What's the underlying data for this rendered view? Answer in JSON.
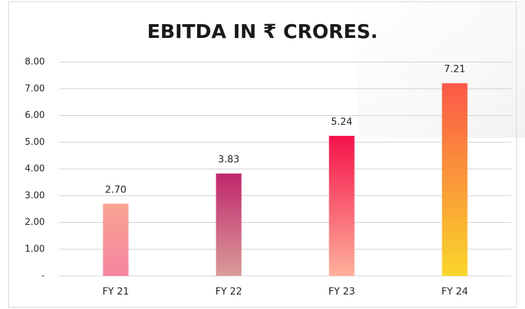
{
  "chart_data": {
    "type": "bar",
    "title": "EBITDA IN ₹ CRORES.",
    "categories": [
      "FY 21",
      "FY 22",
      "FY 23",
      "FY 24"
    ],
    "values": [
      2.7,
      3.83,
      5.24,
      7.21
    ],
    "value_labels": [
      "2.70",
      "3.83",
      "5.24",
      "7.21"
    ],
    "bar_gradients": [
      [
        "#f9a392",
        "#f584a0"
      ],
      [
        "#c0266d",
        "#d99c98"
      ],
      [
        "#f5124b",
        "#fdb19b"
      ],
      [
        "#fb5848",
        "#f9d62a"
      ]
    ],
    "ylim": [
      0,
      8
    ],
    "yticks": [
      {
        "value": 0,
        "label": "-"
      },
      {
        "value": 1,
        "label": "1.00"
      },
      {
        "value": 2,
        "label": "2.00"
      },
      {
        "value": 3,
        "label": "3.00"
      },
      {
        "value": 4,
        "label": "4.00"
      },
      {
        "value": 5,
        "label": "5.00"
      },
      {
        "value": 6,
        "label": "6.00"
      },
      {
        "value": 7,
        "label": "7.00"
      },
      {
        "value": 8,
        "label": "8.00"
      }
    ],
    "grid": true
  }
}
